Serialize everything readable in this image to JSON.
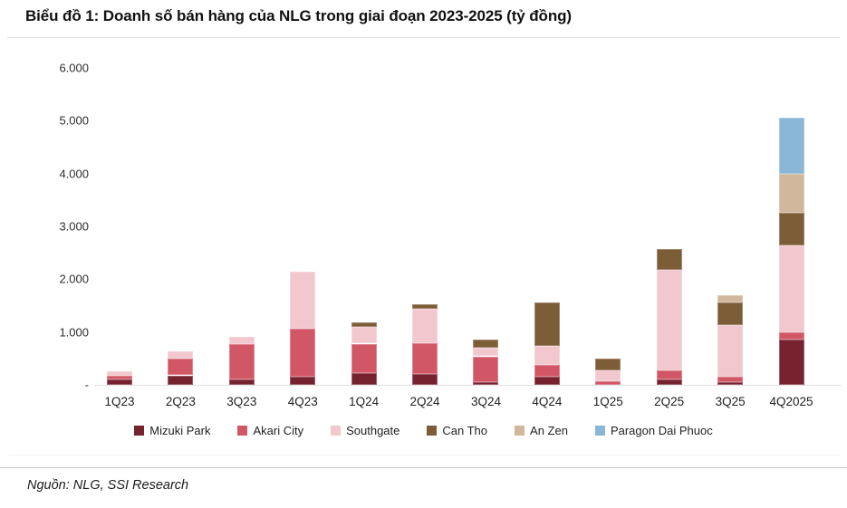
{
  "title": "Biểu đồ 1: Doanh số bán hàng của NLG trong giai đoạn 2023-2025 (tỷ đồng)",
  "source": "Nguồn: NLG, SSI Research",
  "chart_data": {
    "type": "bar",
    "stacked": true,
    "title": "Biểu đồ 1: Doanh số bán hàng của NLG trong giai đoạn 2023-2025 (tỷ đồng)",
    "unit": "tỷ đồng",
    "grid": false,
    "legend_position": "bottom",
    "categories": [
      "1Q23",
      "2Q23",
      "3Q23",
      "4Q23",
      "1Q24",
      "2Q24",
      "3Q24",
      "4Q24",
      "1Q25",
      "2Q25",
      "3Q25",
      "4Q2025"
    ],
    "series": [
      {
        "name": "Mizuki Park",
        "color": "#76222f",
        "values": [
          100,
          180,
          100,
          150,
          230,
          210,
          60,
          160,
          0,
          100,
          50,
          850
        ]
      },
      {
        "name": "Akari City",
        "color": "#d15766",
        "values": [
          70,
          320,
          670,
          920,
          550,
          580,
          480,
          220,
          70,
          170,
          100,
          140
        ]
      },
      {
        "name": "Southgate",
        "color": "#f2c7ce",
        "values": [
          80,
          140,
          140,
          1080,
          310,
          650,
          160,
          350,
          205,
          1900,
          990,
          1650
        ]
      },
      {
        "name": "Can Tho",
        "color": "#7d5c38",
        "values": [
          0,
          0,
          0,
          0,
          100,
          85,
          150,
          830,
          225,
          400,
          420,
          610
        ]
      },
      {
        "name": "An Zen",
        "color": "#d1b79b",
        "values": [
          0,
          0,
          0,
          0,
          0,
          0,
          0,
          0,
          0,
          0,
          140,
          750
        ]
      },
      {
        "name": "Paragon Dai Phuoc",
        "color": "#89b7d5",
        "values": [
          0,
          0,
          0,
          0,
          0,
          0,
          0,
          0,
          0,
          0,
          0,
          1050
        ]
      }
    ],
    "totals": [
      250,
      640,
      910,
      2150,
      1190,
      1525,
      850,
      1560,
      500,
      2570,
      1700,
      5050
    ],
    "y_axis": {
      "min": 0,
      "max": 6000,
      "ticks": [
        {
          "label": "6.000",
          "value": 6000
        },
        {
          "label": "5.000",
          "value": 5000
        },
        {
          "label": "4.000",
          "value": 4000
        },
        {
          "label": "3.000",
          "value": 3000
        },
        {
          "label": "2.000",
          "value": 2000
        },
        {
          "label": "1.000",
          "value": 1000
        },
        {
          "label": "-",
          "value": 0
        }
      ]
    }
  }
}
